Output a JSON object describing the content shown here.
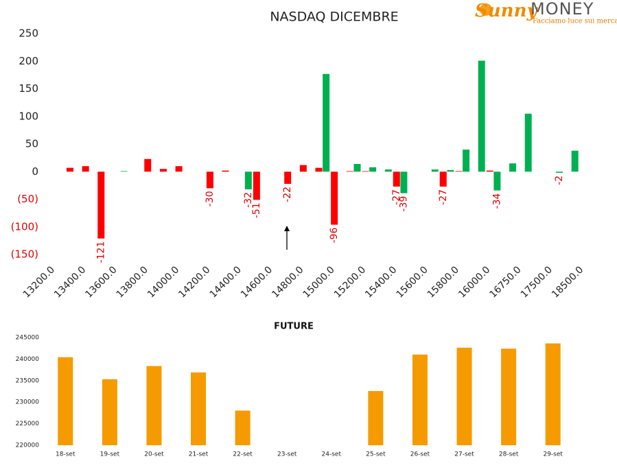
{
  "logo": {
    "name": "Sunny",
    "brand": "MONEY",
    "tagline": "Facciamo luce sui mercati"
  },
  "chart_data": [
    {
      "type": "bar",
      "title": "NASDAQ DICEMBRE",
      "categories": [
        "13200.0",
        null,
        "13400.0",
        null,
        "13600.0",
        null,
        "13800.0",
        null,
        "14000.0",
        null,
        "14200.0",
        null,
        "14400.0",
        null,
        "14600.0",
        null,
        "14800.0",
        null,
        "15000.0",
        null,
        "15200.0",
        null,
        "15400.0",
        null,
        "15600.0",
        null,
        "15800.0",
        null,
        "16000.0",
        null,
        "16750.0",
        null,
        "17500.0",
        null,
        "18500.0"
      ],
      "series": [
        {
          "color": "#ff0000",
          "values": [
            null,
            7,
            10,
            -121,
            null,
            null,
            23,
            5,
            10,
            null,
            -30,
            2,
            null,
            -51,
            null,
            -22,
            12,
            7,
            -96,
            1,
            1,
            null,
            -27,
            null,
            null,
            -27,
            1,
            null,
            2,
            null,
            null,
            null,
            null,
            null,
            null
          ]
        },
        {
          "color": "#00b050",
          "values": [
            null,
            null,
            null,
            null,
            null,
            1,
            null,
            null,
            null,
            null,
            null,
            null,
            null,
            -32,
            null,
            null,
            null,
            null,
            177,
            null,
            14,
            8,
            4,
            -39,
            null,
            4,
            3,
            40,
            201,
            -34,
            15,
            105,
            null,
            -2,
            38
          ]
        }
      ],
      "ylim": [
        -150,
        250
      ],
      "yticks": [
        {
          "value": -150,
          "label": "(150)"
        },
        {
          "value": -100,
          "label": "(100)"
        },
        {
          "value": -50,
          "label": "(50)"
        },
        0,
        50,
        100,
        150,
        200,
        250
      ]
    },
    {
      "type": "bar",
      "title": "FUTURE",
      "categories": [
        "18-set",
        "19-set",
        "20-set",
        "21-set",
        "22-set",
        "23-set",
        "24-set",
        "25-set",
        "26-set",
        "27-set",
        "28-set",
        "29-set"
      ],
      "values": [
        240432,
        235322,
        238391,
        236908,
        228045,
        null,
        null,
        232588,
        241051,
        242641,
        242420,
        243639
      ],
      "color": "#f59b00",
      "ylim": [
        220000,
        245000
      ],
      "yticks": [
        220000,
        225000,
        230000,
        235000,
        240000,
        245000
      ]
    }
  ]
}
